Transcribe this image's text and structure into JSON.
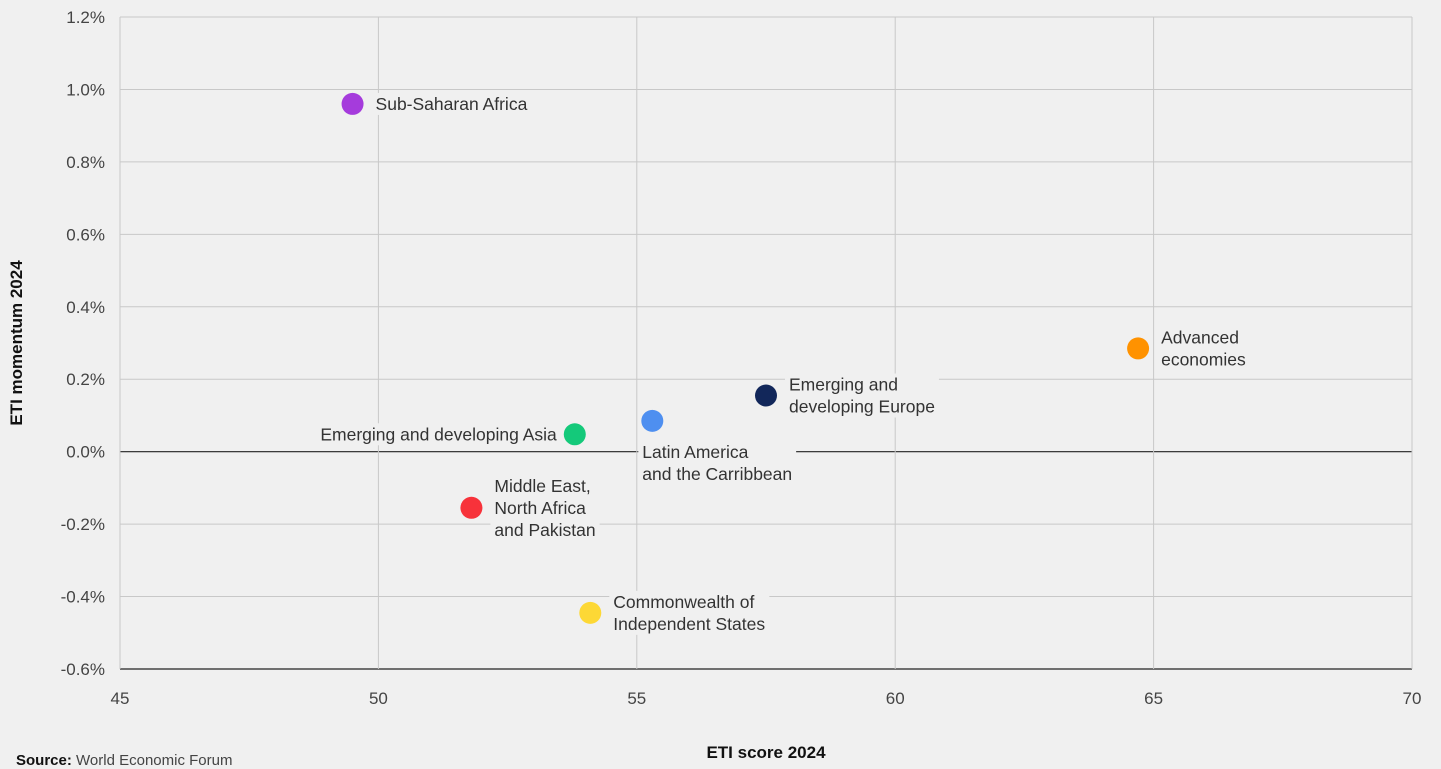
{
  "chart_data": {
    "type": "scatter",
    "title": "",
    "xlabel": "ETI score 2024",
    "ylabel": "ETI momentum 2024",
    "xlim": [
      45,
      70
    ],
    "ylim": [
      -0.6,
      1.2
    ],
    "x_ticks": [
      "45",
      "50",
      "55",
      "60",
      "65",
      "70"
    ],
    "y_ticks": [
      "-0.6%",
      "-0.4%",
      "-0.2%",
      "0.0%",
      "0.2%",
      "0.4%",
      "0.6%",
      "0.8%",
      "1.0%",
      "1.2%"
    ],
    "grid": true,
    "points": [
      {
        "name": "sub-saharan-africa",
        "label_lines": [
          "Sub-Saharan Africa"
        ],
        "x": 49.5,
        "y": 0.96,
        "color": "#a53bdc",
        "label_side": "right"
      },
      {
        "name": "advanced-economies",
        "label_lines": [
          "Advanced",
          "economies"
        ],
        "x": 64.7,
        "y": 0.285,
        "color": "#ff9200",
        "label_side": "right"
      },
      {
        "name": "emerging-developing-europe",
        "label_lines": [
          "Emerging and",
          "developing Europe"
        ],
        "x": 57.5,
        "y": 0.155,
        "color": "#12275a",
        "label_side": "right"
      },
      {
        "name": "latin-america-caribbean",
        "label_lines": [
          "Latin America",
          "and the Carribbean"
        ],
        "x": 55.3,
        "y": 0.085,
        "color": "#4e8ff0",
        "label_side": "below"
      },
      {
        "name": "emerging-developing-asia",
        "label_lines": [
          "Emerging and developing Asia"
        ],
        "x": 53.8,
        "y": 0.048,
        "color": "#14c97a",
        "label_side": "left"
      },
      {
        "name": "middle-east-north-africa-pakistan",
        "label_lines": [
          "Middle East,",
          "North Africa",
          "and Pakistan"
        ],
        "x": 51.8,
        "y": -0.155,
        "color": "#f7323a",
        "label_side": "right"
      },
      {
        "name": "commonwealth-independent-states",
        "label_lines": [
          "Commonwealth of",
          "Independent States"
        ],
        "x": 54.1,
        "y": -0.445,
        "color": "#fdd835",
        "label_side": "right"
      }
    ]
  },
  "source": {
    "label": "Source:",
    "text": "World Economic Forum"
  }
}
